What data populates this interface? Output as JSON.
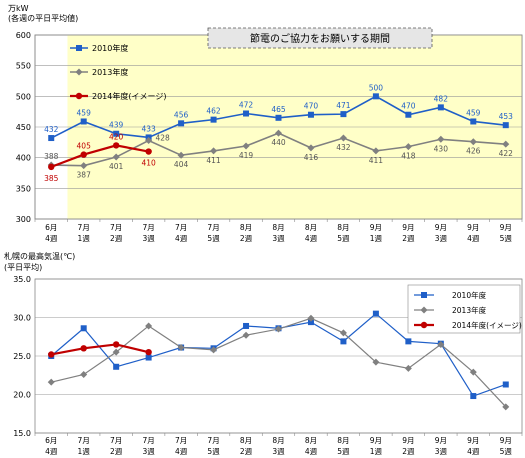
{
  "chart_data": [
    {
      "type": "line",
      "unit_label": "万kW",
      "ylabel": "(各週の平日平均値)",
      "annotation": "節電のご協力をお願いする期間",
      "categories": [
        "6月\n4週",
        "7月\n1週",
        "7月\n2週",
        "7月\n3週",
        "7月\n4週",
        "7月\n5週",
        "8月\n2週",
        "8月\n3週",
        "8月\n4週",
        "8月\n5週",
        "9月\n1週",
        "9月\n2週",
        "9月\n3週",
        "9月\n4週",
        "9月\n5週"
      ],
      "ylim": [
        300,
        600
      ],
      "yticks": [
        300,
        350,
        400,
        450,
        500,
        550,
        600
      ],
      "grid": true,
      "legend": "top-left",
      "series": [
        {
          "name": "2010年度",
          "color": "#1f5fc8",
          "marker": "square",
          "values": [
            432,
            459,
            439,
            433,
            456,
            462,
            472,
            465,
            470,
            471,
            500,
            470,
            482,
            459,
            453
          ]
        },
        {
          "name": "2013年度",
          "color": "#808080",
          "marker": "diamond",
          "values": [
            388,
            387,
            401,
            428,
            404,
            411,
            419,
            440,
            416,
            432,
            411,
            418,
            430,
            426,
            422
          ]
        },
        {
          "name": "2014年度(イメージ)",
          "color": "#c00000",
          "marker": "circle",
          "values": [
            385,
            405,
            420,
            410,
            null,
            null,
            null,
            null,
            null,
            null,
            null,
            null,
            null,
            null,
            null
          ]
        }
      ]
    },
    {
      "type": "line",
      "title": "札幌の最高気温(℃)",
      "ylabel": "(平日平均)",
      "categories": [
        "6月\n4週",
        "7月\n1週",
        "7月\n2週",
        "7月\n3週",
        "7月\n4週",
        "7月\n5週",
        "8月\n2週",
        "8月\n3週",
        "8月\n4週",
        "8月\n5週",
        "9月\n1週",
        "9月\n2週",
        "9月\n3週",
        "9月\n4週",
        "9月\n5週"
      ],
      "ylim": [
        15,
        35
      ],
      "yticks": [
        15.0,
        20.0,
        25.0,
        30.0,
        35.0
      ],
      "grid": true,
      "legend": "top-right",
      "series": [
        {
          "name": "2010年度",
          "color": "#1f5fc8",
          "marker": "square",
          "values": [
            25.0,
            28.6,
            23.6,
            24.8,
            26.1,
            26.0,
            28.9,
            28.6,
            29.4,
            26.9,
            30.5,
            26.9,
            26.6,
            19.8,
            21.3
          ]
        },
        {
          "name": "2013年度",
          "color": "#808080",
          "marker": "diamond",
          "values": [
            21.6,
            22.6,
            25.5,
            28.9,
            26.1,
            25.8,
            27.7,
            28.5,
            29.9,
            28.0,
            24.2,
            23.4,
            26.5,
            22.9,
            18.4
          ]
        },
        {
          "name": "2014年度(イメージ)",
          "color": "#c00000",
          "marker": "circle",
          "values": [
            25.2,
            26.0,
            26.5,
            25.5,
            null,
            null,
            null,
            null,
            null,
            null,
            null,
            null,
            null,
            null,
            null
          ]
        }
      ]
    }
  ]
}
